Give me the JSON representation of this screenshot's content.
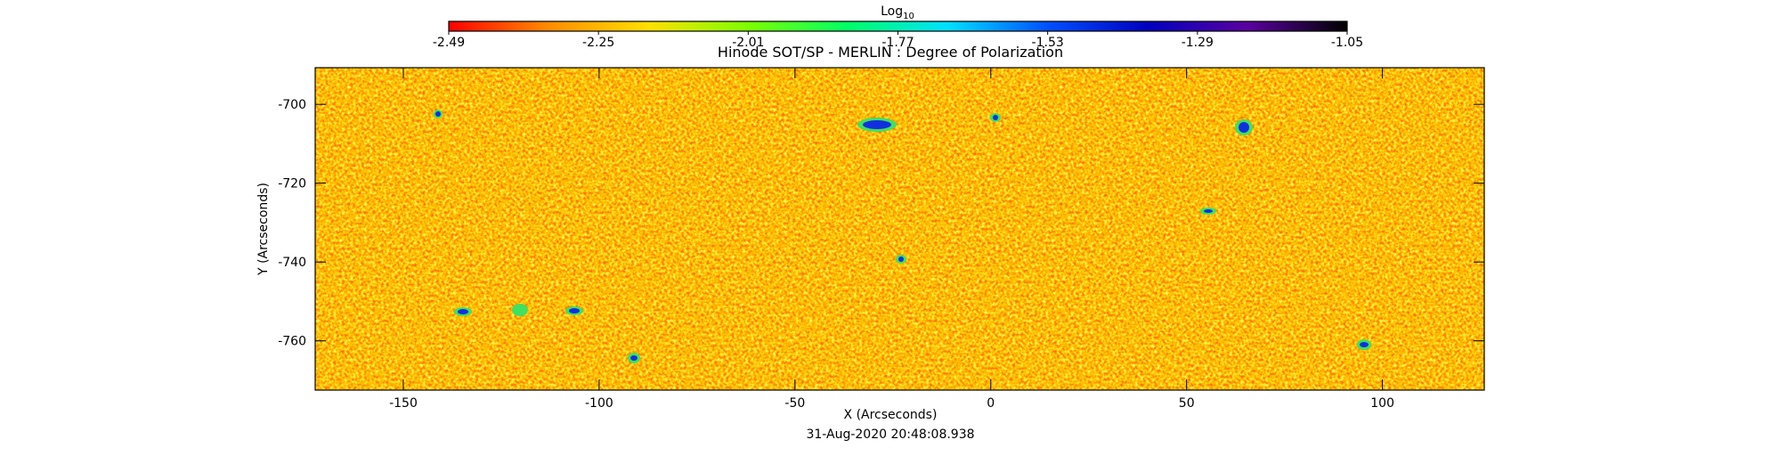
{
  "chart_data": {
    "type": "image",
    "title": "Hinode SOT/SP - MERLIN : Degree of Polarization",
    "xlabel": "X (Arcseconds)",
    "ylabel": "Y (Arcseconds)",
    "footer": "31-Aug-2020 20:48:08.938",
    "xlim": [
      -172.5,
      126
    ],
    "ylim": [
      -772.5,
      -690.7
    ],
    "xticks": [
      -150,
      -100,
      -50,
      0,
      50,
      100
    ],
    "yticks": [
      -700,
      -720,
      -740,
      -760
    ],
    "colorbar": {
      "label": "Log",
      "label_subscript": "10",
      "lim": [
        -2.49,
        -1.05
      ],
      "ticks": [
        -2.49,
        -2.25,
        -2.01,
        -1.77,
        -1.53,
        -1.29,
        -1.05
      ],
      "colors": [
        "#ff0000",
        "#ff8c00",
        "#ffe000",
        "#7cff00",
        "#00ff66",
        "#00e0ff",
        "#0050ff",
        "#0000c0",
        "#5a00a0",
        "#000000"
      ]
    }
  }
}
